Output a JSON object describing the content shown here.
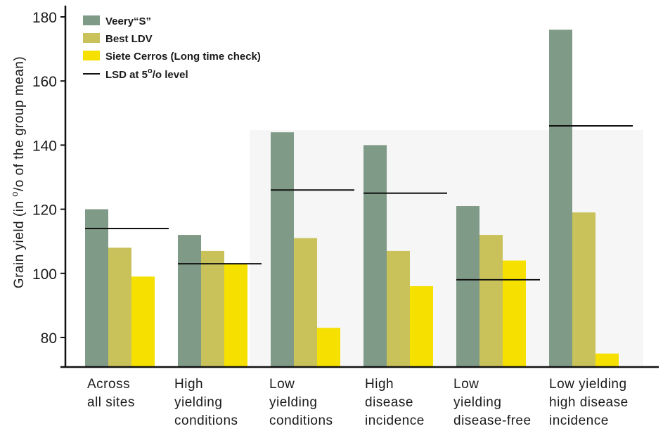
{
  "chart_data": {
    "type": "bar",
    "ylabel_parts": [
      "Grain yield (in ",
      "o",
      "/o of the group mean)"
    ],
    "ylim": [
      70,
      183
    ],
    "yticks": [
      80,
      100,
      120,
      140,
      160,
      180
    ],
    "grid": false,
    "legend_position": "top-left",
    "categories": [
      [
        "Across",
        "all sites"
      ],
      [
        "High",
        "yielding",
        "conditions"
      ],
      [
        "Low",
        "yielding",
        "conditions"
      ],
      [
        "High",
        "disease",
        "incidence"
      ],
      [
        "Low",
        "yielding",
        "disease-free"
      ],
      [
        "Low yielding",
        "high disease",
        "incidence"
      ]
    ],
    "series": [
      {
        "name": "Veery“S”",
        "color": "#7f9a87",
        "values": [
          120,
          112,
          144,
          140,
          121,
          176
        ]
      },
      {
        "name": "Best LDV",
        "color": "#c9c25a",
        "values": [
          108,
          107,
          111,
          107,
          112,
          119
        ]
      },
      {
        "name": "Siete Cerros (Long time check)",
        "color": "#f5e000",
        "values": [
          99,
          103,
          83,
          96,
          104,
          75
        ]
      }
    ],
    "lsd": {
      "legend_parts": [
        "LSD at 5",
        "o",
        "/o level"
      ],
      "values": [
        114,
        103,
        126,
        125,
        98,
        146
      ]
    }
  }
}
